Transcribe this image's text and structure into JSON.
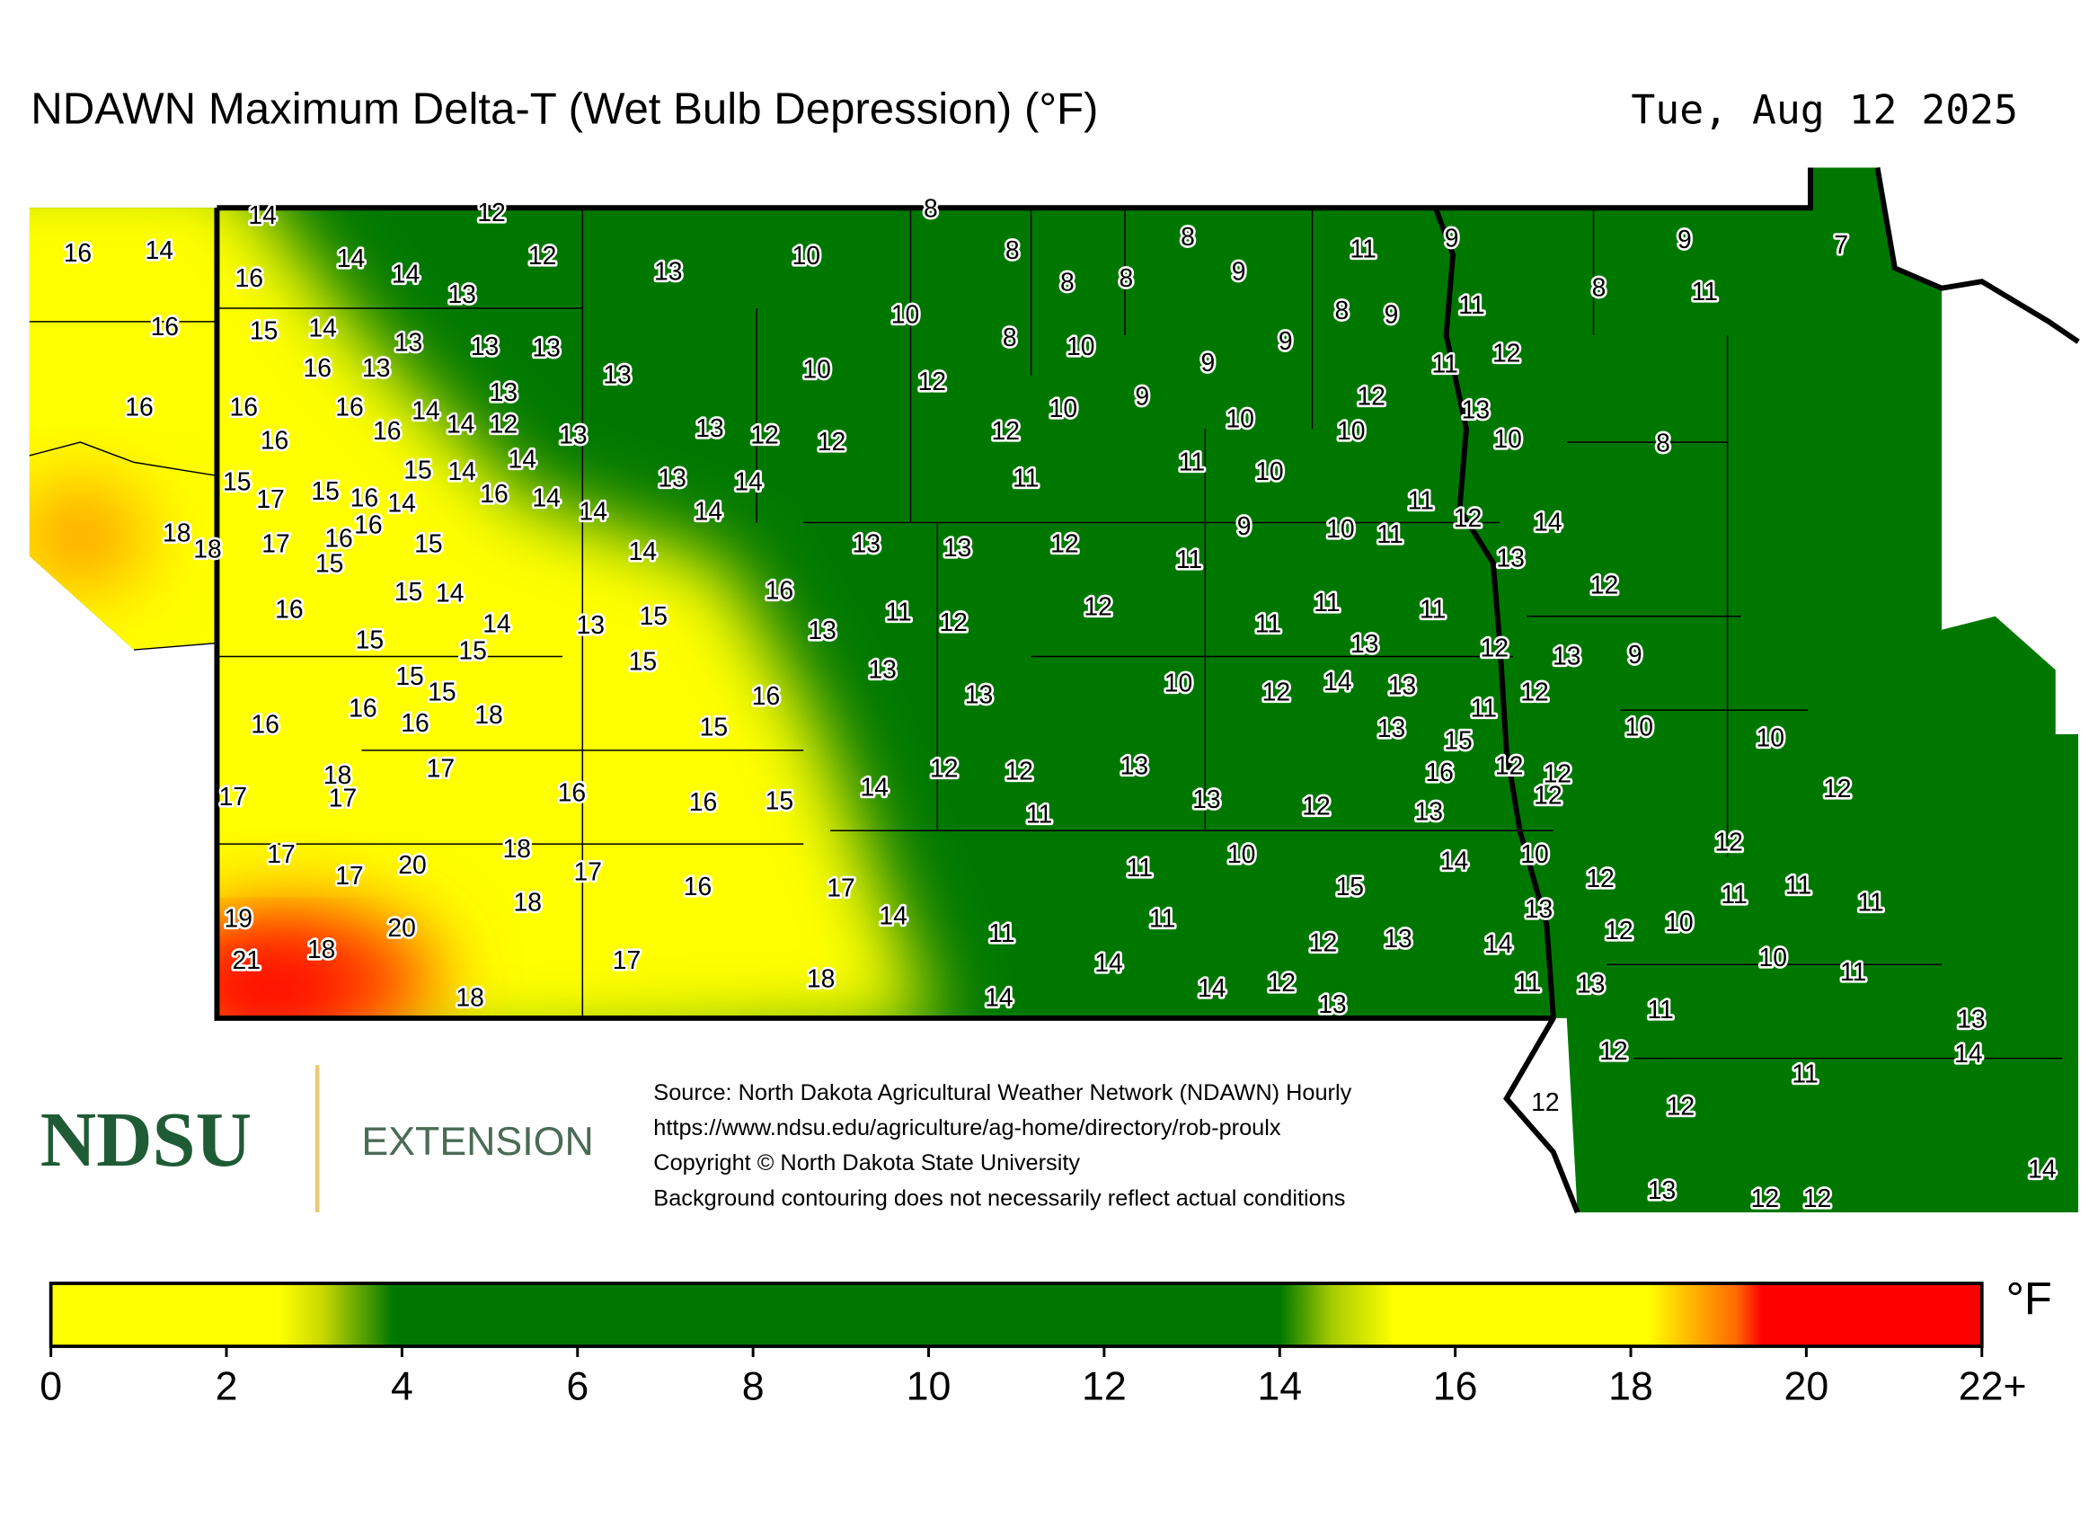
{
  "title": "NDAWN Maximum Delta-T (Wet Bulb Depression) (°F)",
  "date": "Tue, Aug 12 2025",
  "logo": {
    "name": "NDSU",
    "unit": "EXTENSION"
  },
  "source": [
    "Source: North Dakota Agricultural Weather Network (NDAWN) Hourly",
    "https://www.ndsu.edu/agriculture/ag-home/directory/rob-proulx",
    "Copyright © North Dakota State University",
    "Background contouring does not necessarily reflect actual conditions"
  ],
  "stations": {
    "values": [
      14,
      12,
      8,
      16,
      14,
      14,
      12,
      10,
      13,
      8,
      8,
      9,
      11,
      9,
      9,
      7,
      16,
      14,
      13,
      8,
      8,
      8,
      11,
      11,
      16,
      15,
      14,
      13,
      13,
      13,
      10,
      8,
      9,
      8,
      10,
      16,
      13,
      13,
      10,
      12,
      9,
      9,
      11,
      12,
      16,
      16,
      16,
      13,
      14,
      14,
      12,
      16,
      16,
      13,
      13,
      12,
      12,
      10,
      9,
      10,
      12,
      13,
      10,
      10,
      8,
      12,
      15,
      14,
      14,
      15,
      17,
      15,
      16,
      14,
      16,
      14,
      14,
      13,
      14,
      14,
      11,
      11,
      10,
      11,
      12,
      14,
      18,
      18,
      17,
      16,
      16,
      15,
      15,
      14,
      13,
      13,
      12,
      11,
      9,
      10,
      11,
      13,
      15,
      14,
      16,
      16,
      14,
      13,
      15,
      11,
      12,
      13,
      12,
      11,
      11,
      11,
      12,
      15,
      15,
      15,
      13,
      13,
      12,
      13,
      9,
      15,
      15,
      16,
      16,
      18,
      16,
      16,
      15,
      13,
      10,
      12,
      14,
      13,
      11,
      12,
      13,
      15,
      10,
      10,
      17,
      18,
      17,
      17,
      16,
      16,
      15,
      14,
      12,
      12,
      13,
      11,
      13,
      12,
      16,
      12,
      12,
      12,
      13,
      12,
      17,
      20,
      18,
      17,
      17,
      16,
      17,
      11,
      10,
      15,
      14,
      10,
      12,
      12,
      11,
      11,
      11,
      19,
      20,
      18,
      14,
      11,
      11,
      12,
      13,
      13,
      14,
      12,
      10,
      10,
      21,
      18,
      17,
      18,
      14,
      14,
      12,
      13,
      11,
      13,
      11,
      11,
      18,
      14,
      13,
      12,
      11,
      14,
      12,
      12,
      14,
      13,
      12,
      12
    ]
  },
  "colorbar": {
    "unit": "°F",
    "lim": [
      0,
      22
    ],
    "ticks": [
      0,
      2,
      4,
      6,
      8,
      10,
      12,
      14,
      16,
      18,
      20,
      {
        "value": 22,
        "label": "22+"
      }
    ],
    "colorscale": [
      {
        "value": 0,
        "color": "#ffff00"
      },
      {
        "value": 2.6,
        "color": "#ffff00"
      },
      {
        "value": 3.1,
        "color": "#c8d800"
      },
      {
        "value": 3.9,
        "color": "#007800"
      },
      {
        "value": 14,
        "color": "#007800"
      },
      {
        "value": 14.6,
        "color": "#a8cc00"
      },
      {
        "value": 15.3,
        "color": "#ffff00"
      },
      {
        "value": 18.2,
        "color": "#ffff00"
      },
      {
        "value": 19.2,
        "color": "#ff6a00"
      },
      {
        "value": 19.5,
        "color": "#ff0000"
      },
      {
        "value": 22,
        "color": "#ff0000"
      }
    ]
  }
}
